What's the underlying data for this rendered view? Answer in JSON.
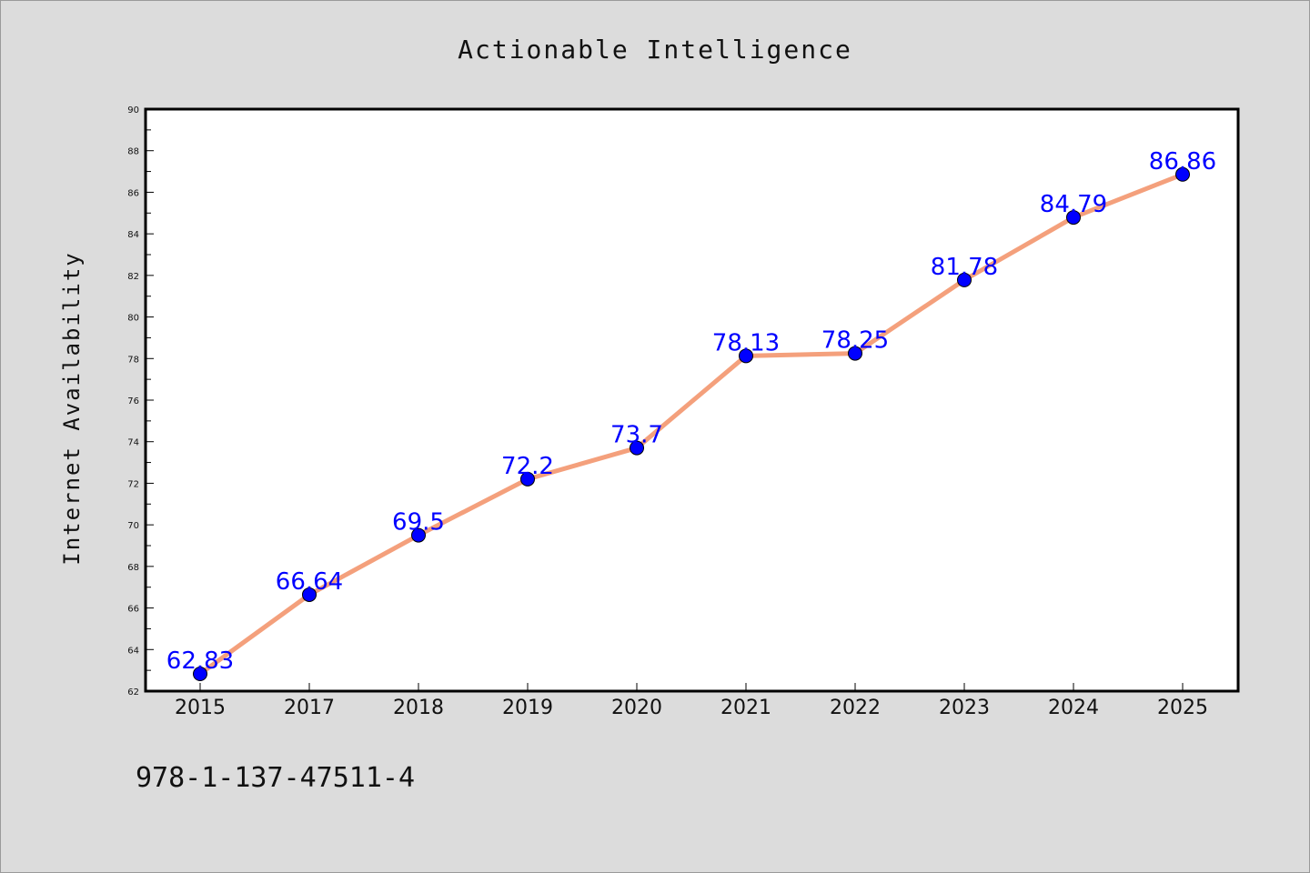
{
  "chart_data": {
    "type": "line",
    "title": "Actionable Intelligence",
    "xlabel": "",
    "ylabel": "Internet Availability",
    "categories": [
      "2015",
      "2017",
      "2018",
      "2019",
      "2020",
      "2021",
      "2022",
      "2023",
      "2024",
      "2025"
    ],
    "series": [
      {
        "values": [
          62.83,
          66.64,
          69.5,
          72.2,
          73.7,
          78.13,
          78.25,
          81.78,
          84.79,
          86.86
        ],
        "data_labels": [
          "62.83",
          "66.64",
          "69.5",
          "72.2",
          "73.7",
          "78.13",
          "78.25",
          "81.78",
          "84.79",
          "86.86"
        ]
      }
    ],
    "ylim": [
      62,
      90
    ],
    "yticks": [
      "62",
      "64",
      "66",
      "68",
      "70",
      "72",
      "74",
      "76",
      "78",
      "80",
      "82",
      "84",
      "86",
      "88",
      "90"
    ],
    "grid": false,
    "legend": "none",
    "colors": {
      "line": "#f4a07c",
      "marker": "#0000ff",
      "label": "#0000ff",
      "background": "#dcdcdc",
      "plot_background": "#ffffff"
    }
  },
  "annotation": {
    "text": "978-1-137-47511-4"
  }
}
